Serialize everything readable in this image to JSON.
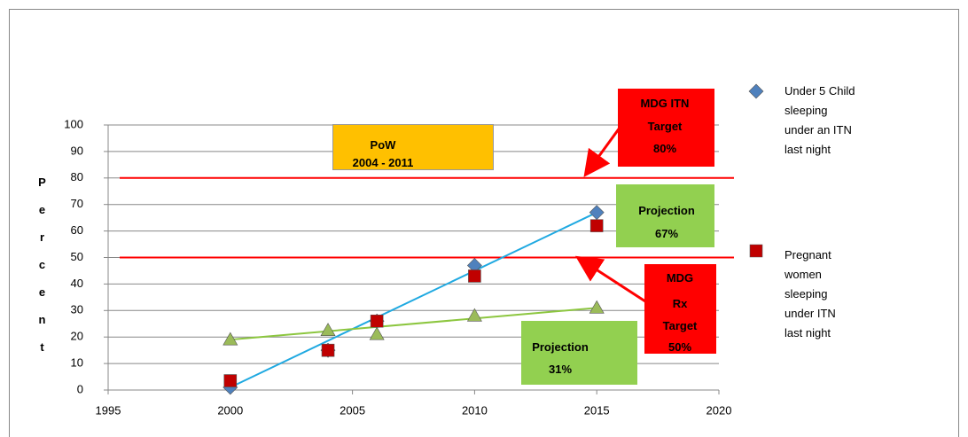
{
  "chart_data": {
    "type": "scatter",
    "y_axis_label": "Percent",
    "xlim": [
      1995,
      2020
    ],
    "xticks": [
      1995,
      2000,
      2005,
      2010,
      2015,
      2020
    ],
    "ylim": [
      0,
      100
    ],
    "yticks": [
      0,
      10,
      20,
      30,
      40,
      50,
      60,
      70,
      80,
      90,
      100
    ],
    "grid": true,
    "series": [
      {
        "name": "Under 5 Child sleeping under an ITN last night",
        "color": "#4f81bd",
        "marker": "diamond",
        "x": [
          2000,
          2004,
          2006,
          2010,
          2015
        ],
        "values": [
          1,
          15,
          26,
          47,
          67
        ]
      },
      {
        "name": "Pregnant women sleeping under ITN last night",
        "color": "#c00000",
        "marker": "square",
        "x": [
          2000,
          2004,
          2006,
          2010,
          2015
        ],
        "values": [
          3.5,
          15,
          26,
          43,
          62
        ]
      },
      {
        "color": "#9bbb59",
        "marker": "triangle",
        "x": [
          2000,
          2004,
          2006,
          2010,
          2015
        ],
        "values": [
          19,
          22.5,
          21,
          28,
          31
        ]
      }
    ],
    "trendlines": [
      {
        "color": "#1fa9e1",
        "x": [
          2000,
          2015
        ],
        "values": [
          1,
          67
        ]
      },
      {
        "color": "#8cc63f",
        "x": [
          2000,
          2015
        ],
        "values": [
          19,
          31
        ]
      }
    ],
    "reference_lines": [
      {
        "value": 80,
        "color": "#ff0000"
      },
      {
        "value": 50,
        "color": "#ff0000"
      }
    ],
    "annotations": [
      {
        "lines": [
          "PoW",
          "2004 - 2011"
        ],
        "color": "#ffc000"
      },
      {
        "lines": [
          "MDG ITN",
          "Target",
          "80%"
        ],
        "color": "#ff0000"
      },
      {
        "lines": [
          "Projection",
          "67%"
        ],
        "color": "#92d050"
      },
      {
        "lines": [
          "MDG",
          "Rx",
          "Target",
          "50%"
        ],
        "color": "#ff0000"
      },
      {
        "lines": [
          "Projection",
          "31%"
        ],
        "color": "#92d050"
      }
    ]
  }
}
